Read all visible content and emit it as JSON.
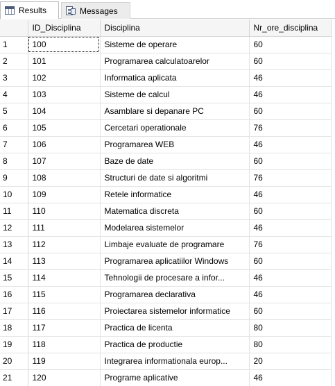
{
  "tabs": [
    {
      "label": "Results",
      "icon": "results-grid-icon",
      "active": true
    },
    {
      "label": "Messages",
      "icon": "messages-icon",
      "active": false
    }
  ],
  "columns": [
    "ID_Disciplina",
    "Disciplina",
    "Nr_ore_disciplina"
  ],
  "rows": [
    [
      "1",
      "100",
      "Sisteme de operare",
      "60"
    ],
    [
      "2",
      "101",
      "Programarea calculatoarelor",
      "60"
    ],
    [
      "3",
      "102",
      "Informatica aplicata",
      "46"
    ],
    [
      "4",
      "103",
      "Sisteme de calcul",
      "46"
    ],
    [
      "5",
      "104",
      "Asamblare si depanare PC",
      "60"
    ],
    [
      "6",
      "105",
      "Cercetari operationale",
      "76"
    ],
    [
      "7",
      "106",
      "Programarea WEB",
      "46"
    ],
    [
      "8",
      "107",
      "Baze de date",
      "60"
    ],
    [
      "9",
      "108",
      "Structuri de date si algoritmi",
      "76"
    ],
    [
      "10",
      "109",
      "Retele informatice",
      "46"
    ],
    [
      "11",
      "110",
      "Matematica discreta",
      "60"
    ],
    [
      "12",
      "111",
      "Modelarea sistemelor",
      "46"
    ],
    [
      "13",
      "112",
      "Limbaje evaluate de programare",
      "76"
    ],
    [
      "14",
      "113",
      "Programarea aplicatiilor Windows",
      "60"
    ],
    [
      "15",
      "114",
      "Tehnologii de procesare a infor...",
      "46"
    ],
    [
      "16",
      "115",
      "Programarea declarativa",
      "46"
    ],
    [
      "17",
      "116",
      "Proiectarea sistemelor informatice",
      "60"
    ],
    [
      "18",
      "117",
      "Practica de licenta",
      "80"
    ],
    [
      "19",
      "118",
      "Practica de productie",
      "80"
    ],
    [
      "20",
      "119",
      "Integrarea informationala europ...",
      "20"
    ],
    [
      "21",
      "120",
      "Programe aplicative",
      "46"
    ]
  ]
}
